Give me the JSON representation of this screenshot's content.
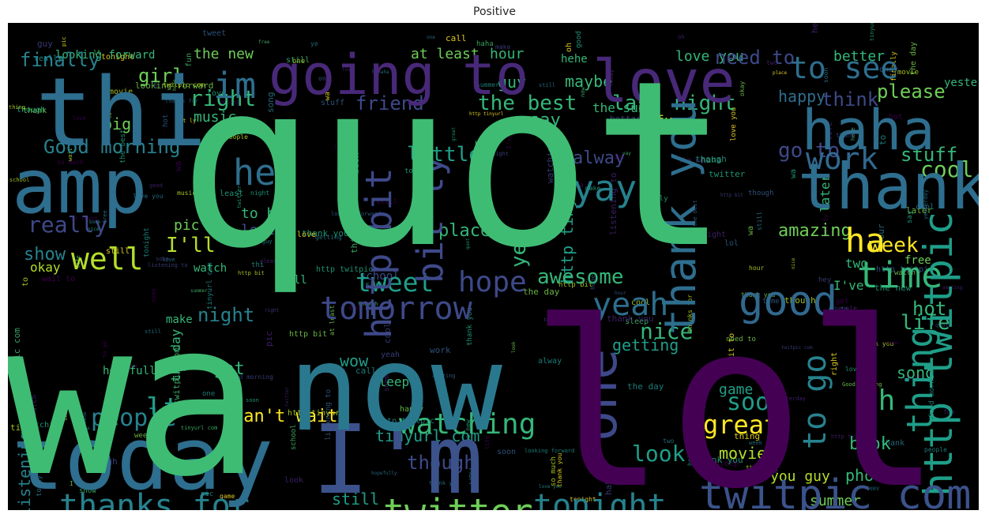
{
  "title": "Positive",
  "colors": {
    "background": "#000000",
    "palette": [
      "#440154",
      "#482475",
      "#414487",
      "#355f8d",
      "#2a788e",
      "#21918c",
      "#22a884",
      "#44bf70",
      "#7ad151",
      "#bddf26",
      "#fde725"
    ]
  },
  "words": [
    {
      "text": "quot",
      "color": "#3fbc73"
    },
    {
      "text": "lol",
      "color": "#440154"
    },
    {
      "text": "wa",
      "color": "#3fbc73"
    },
    {
      "text": "now",
      "color": "#2a788e"
    },
    {
      "text": "today",
      "color": "#2e6e8e"
    },
    {
      "text": "I'm",
      "color": "#3b528b"
    },
    {
      "text": "thi",
      "color": "#2e6e8e"
    },
    {
      "text": "amp",
      "color": "#2e6e8e"
    },
    {
      "text": "going",
      "color": "#482878"
    },
    {
      "text": "to",
      "color": "#482878"
    },
    {
      "text": "love",
      "color": "#482878"
    },
    {
      "text": "haha",
      "color": "#2e6e8e"
    },
    {
      "text": "thank",
      "color": "#2e6e8e"
    },
    {
      "text": "one",
      "color": "#3e4989"
    },
    {
      "text": "thank you",
      "color": "#2e6e8e"
    },
    {
      "text": "http twitpic",
      "color": "#1f9e89"
    },
    {
      "text": "twitpic com",
      "color": "#3b528b"
    },
    {
      "text": "http bit",
      "color": "#3e4989"
    },
    {
      "text": "bit ly",
      "color": "#3e4989"
    },
    {
      "text": "good",
      "color": "#31688e"
    },
    {
      "text": "time",
      "color": "#35b779"
    },
    {
      "text": "im",
      "color": "#2e6e8e"
    },
    {
      "text": "hey",
      "color": "#2e6e8e"
    },
    {
      "text": "yay",
      "color": "#26828e"
    },
    {
      "text": "ha",
      "color": "#fde725"
    },
    {
      "text": "well",
      "color": "#b5de2b"
    },
    {
      "text": "yeah",
      "color": "#2e6e8e"
    },
    {
      "text": "tomorrow",
      "color": "#3e4989"
    },
    {
      "text": "twitter",
      "color": "#6ece58"
    },
    {
      "text": "thanks for",
      "color": "#26828e"
    },
    {
      "text": "tonight",
      "color": "#26828e"
    },
    {
      "text": "watching",
      "color": "#35b779"
    },
    {
      "text": "thing",
      "color": "#1f9e89"
    },
    {
      "text": "work",
      "color": "#31688e"
    },
    {
      "text": "to see",
      "color": "#2e6e8e"
    },
    {
      "text": "hope",
      "color": "#3e4989"
    },
    {
      "text": "tweet",
      "color": "#1f9e89"
    },
    {
      "text": "great",
      "color": "#fde725"
    },
    {
      "text": "can't wait",
      "color": "#fde725"
    },
    {
      "text": "awesome",
      "color": "#35b779"
    },
    {
      "text": "really",
      "color": "#3e4989"
    },
    {
      "text": "to go",
      "color": "#26828e"
    },
    {
      "text": "Good morning",
      "color": "#26828e"
    },
    {
      "text": "cool",
      "color": "#6ece58"
    },
    {
      "text": "nice",
      "color": "#35b779"
    },
    {
      "text": "night",
      "color": "#26828e"
    },
    {
      "text": "finally",
      "color": "#26828e"
    },
    {
      "text": "girl",
      "color": "#6ece58"
    },
    {
      "text": "right",
      "color": "#35b779"
    },
    {
      "text": "friend",
      "color": "#3e4989"
    },
    {
      "text": "the best",
      "color": "#35b779"
    },
    {
      "text": "little",
      "color": "#1f9e89"
    },
    {
      "text": "I'll",
      "color": "#b5de2b"
    },
    {
      "text": "show",
      "color": "#26828e"
    },
    {
      "text": "lt",
      "color": "#1f9e89"
    },
    {
      "text": "people",
      "color": "#26828e"
    },
    {
      "text": "soon",
      "color": "#1f9e89"
    },
    {
      "text": "look",
      "color": "#1f9e89"
    },
    {
      "text": "though",
      "color": "#3e4989"
    },
    {
      "text": "still",
      "color": "#1f9e89"
    },
    {
      "text": "so much",
      "color": "#b5de2b"
    },
    {
      "text": "last night",
      "color": "#35b779"
    },
    {
      "text": "happy",
      "color": "#2e6e8e"
    },
    {
      "text": "think",
      "color": "#3e4989"
    },
    {
      "text": "please",
      "color": "#6ece58"
    },
    {
      "text": "need to",
      "color": "#3e4989"
    },
    {
      "text": "stuff",
      "color": "#35b779"
    },
    {
      "text": "go to",
      "color": "#3e4989"
    },
    {
      "text": "http tinyurl",
      "color": "#1f9e89"
    },
    {
      "text": "tinyurl com",
      "color": "#1f9e89"
    },
    {
      "text": "listening to",
      "color": "#26828e"
    },
    {
      "text": "wait to",
      "color": "#35b779"
    },
    {
      "text": "forward to",
      "color": "#35b779"
    },
    {
      "text": "summer",
      "color": "#6ece58"
    },
    {
      "text": "hahaha",
      "color": "#3e4989"
    },
    {
      "text": "you guy",
      "color": "#b5de2b"
    },
    {
      "text": "book",
      "color": "#35b779"
    },
    {
      "text": "photo",
      "color": "#35b779"
    },
    {
      "text": "movie",
      "color": "#b5de2b"
    },
    {
      "text": "game",
      "color": "#1f9e89"
    },
    {
      "text": "life",
      "color": "#35b779"
    },
    {
      "text": "song",
      "color": "#35b779"
    },
    {
      "text": "hot",
      "color": "#35b779"
    },
    {
      "text": "oh",
      "color": "#35b779"
    },
    {
      "text": "week",
      "color": "#fde725"
    },
    {
      "text": "alway",
      "color": "#3e4989"
    },
    {
      "text": "amazing",
      "color": "#6ece58"
    },
    {
      "text": "got",
      "color": "#35b779"
    },
    {
      "text": "ye",
      "color": "#35b779"
    },
    {
      "text": "wow",
      "color": "#1f9e89"
    },
    {
      "text": "maybe",
      "color": "#35b779"
    },
    {
      "text": "hour",
      "color": "#35b779"
    },
    {
      "text": "at least",
      "color": "#6ece58"
    },
    {
      "text": "better",
      "color": "#35b779"
    },
    {
      "text": "okay",
      "color": "#b5de2b"
    },
    {
      "text": "pic",
      "color": "#6ece58"
    },
    {
      "text": "the new",
      "color": "#6ece58"
    },
    {
      "text": "looking forward",
      "color": "#35b779"
    },
    {
      "text": "love you",
      "color": "#35b779"
    },
    {
      "text": "fun",
      "color": "#b5de2b"
    },
    {
      "text": "big",
      "color": "#6ece58"
    },
    {
      "text": "music",
      "color": "#35b779"
    },
    {
      "text": "say",
      "color": "#35b779"
    },
    {
      "text": "guy",
      "color": "#35b779"
    },
    {
      "text": "place",
      "color": "#35b779"
    },
    {
      "text": "to bed",
      "color": "#35b779"
    },
    {
      "text": "lovely",
      "color": "#3e4989"
    },
    {
      "text": "the sun",
      "color": "#35b779"
    },
    {
      "text": "later",
      "color": "#35b779"
    },
    {
      "text": "free",
      "color": "#6ece58"
    },
    {
      "text": "two",
      "color": "#35b779"
    },
    {
      "text": "I've",
      "color": "#35b779"
    },
    {
      "text": "the day",
      "color": "#35b779"
    },
    {
      "text": "hopefully",
      "color": "#35b779"
    },
    {
      "text": "yesterday",
      "color": "#35b779"
    },
    {
      "text": "school",
      "color": "#3e4989"
    },
    {
      "text": "getting",
      "color": "#1f9e89"
    },
    {
      "text": "make",
      "color": "#35b779"
    },
    {
      "text": "hehe",
      "color": "#35b779"
    },
    {
      "text": "call",
      "color": "#35b779"
    },
    {
      "text": "sleep",
      "color": "#35b779"
    },
    {
      "text": "watch",
      "color": "#35b779"
    }
  ]
}
